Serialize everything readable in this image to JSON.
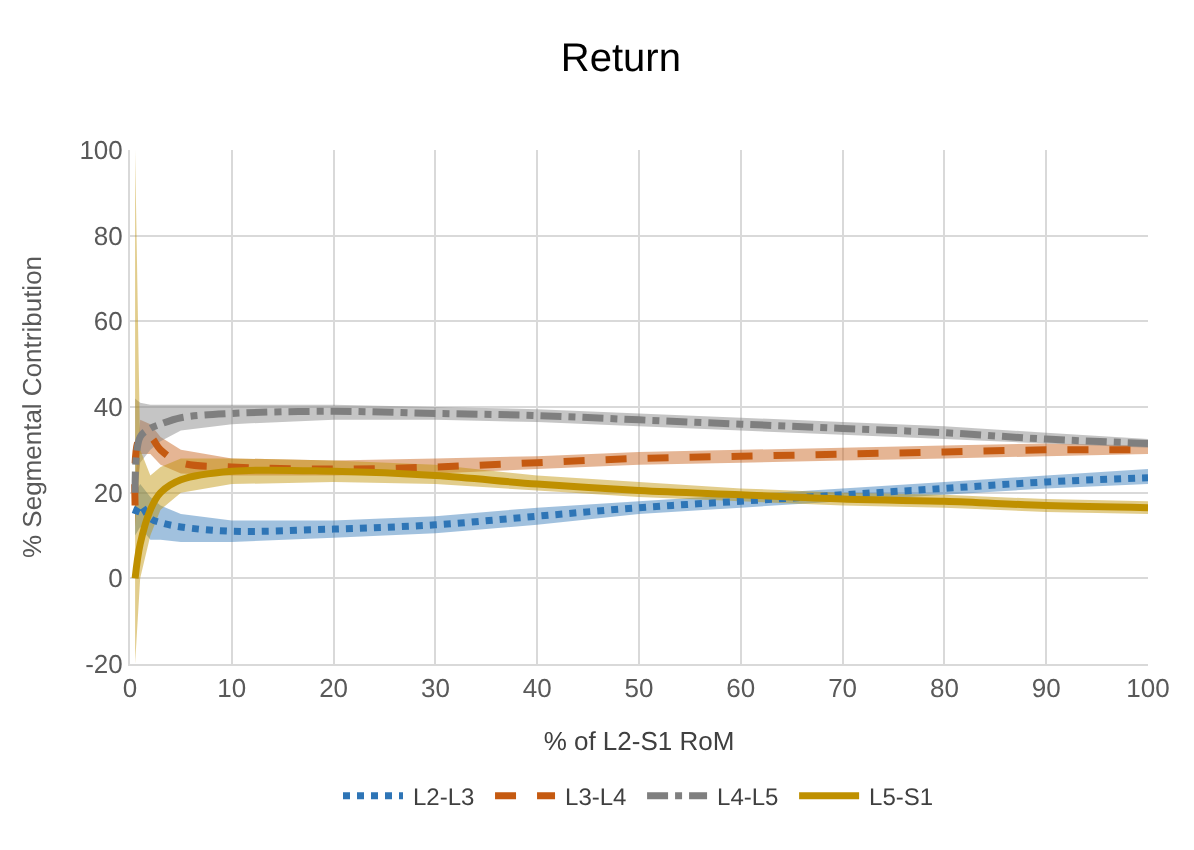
{
  "chart_data": {
    "type": "line",
    "title": "Return",
    "xlabel": "% of L2-S1 RoM",
    "ylabel": "% Segmental Contribution",
    "x": [
      0.5,
      1,
      2,
      3,
      5,
      10,
      20,
      30,
      40,
      50,
      60,
      70,
      80,
      90,
      100
    ],
    "xlim": [
      0,
      100
    ],
    "xticks": [
      0,
      10,
      20,
      30,
      40,
      50,
      60,
      70,
      80,
      90,
      100
    ],
    "ylim": [
      -20,
      100
    ],
    "yticks": [
      -20,
      0,
      20,
      40,
      60,
      80,
      100
    ],
    "grid": true,
    "legend": "bottom",
    "series": [
      {
        "name": "L2-L3",
        "color": "#2e75b6",
        "line_style": "dotted",
        "values": [
          15,
          17,
          14,
          13,
          12,
          11,
          11.5,
          12.5,
          14.5,
          16.5,
          18,
          19.5,
          21,
          22.5,
          23.5
        ],
        "lower": [
          10,
          12,
          9,
          9,
          8.5,
          8.5,
          9.5,
          10.5,
          12.5,
          15,
          16.5,
          18,
          19.5,
          21,
          22
        ],
        "upper": [
          20,
          22,
          19,
          17,
          15,
          13.5,
          13.5,
          14.5,
          16.5,
          18,
          19.5,
          21,
          22.5,
          24,
          25.5
        ]
      },
      {
        "name": "L3-L4",
        "color": "#c55a11",
        "line_style": "dashed",
        "values": [
          17,
          33,
          33,
          30,
          27,
          26,
          25.5,
          26,
          27,
          28,
          28.5,
          29,
          29.5,
          30,
          30
        ],
        "lower": [
          12,
          29,
          29,
          26.5,
          24.5,
          24,
          24,
          24.5,
          25.5,
          26.5,
          27,
          27.5,
          28,
          28.5,
          29
        ],
        "upper": [
          22,
          37,
          36,
          33,
          30,
          28,
          27.5,
          28,
          28.5,
          29.5,
          30,
          30.5,
          31,
          31.5,
          31
        ]
      },
      {
        "name": "L4-L5",
        "color": "#7f7f7f",
        "line_style": "dashdot",
        "values": [
          20,
          33,
          35,
          36,
          37.5,
          38.5,
          39,
          38.5,
          38,
          37,
          36,
          35,
          34,
          32.5,
          31.5
        ],
        "lower": [
          15,
          27,
          30,
          32,
          34.5,
          36,
          37,
          37,
          36.5,
          35.5,
          34.5,
          33.5,
          32.5,
          31.5,
          30.5
        ],
        "upper": [
          42,
          41,
          40.5,
          40.5,
          40.5,
          40.5,
          40.5,
          40,
          39.5,
          38.5,
          37.5,
          36.5,
          35.5,
          34,
          32.5
        ]
      },
      {
        "name": "L5-S1",
        "color": "#bf9000",
        "line_style": "solid",
        "values": [
          0,
          8,
          16,
          20,
          23,
          25,
          25,
          24,
          22,
          20.5,
          19.5,
          18.5,
          18,
          17,
          16.5
        ],
        "lower": [
          -20,
          0,
          10,
          16,
          20,
          22,
          22.5,
          22,
          20.5,
          19,
          18,
          17,
          16.5,
          15.5,
          15
        ],
        "upper": [
          100,
          30,
          24,
          26,
          28,
          28,
          27.5,
          26.5,
          24,
          22.5,
          21,
          20,
          19.5,
          18.5,
          18
        ]
      }
    ]
  }
}
